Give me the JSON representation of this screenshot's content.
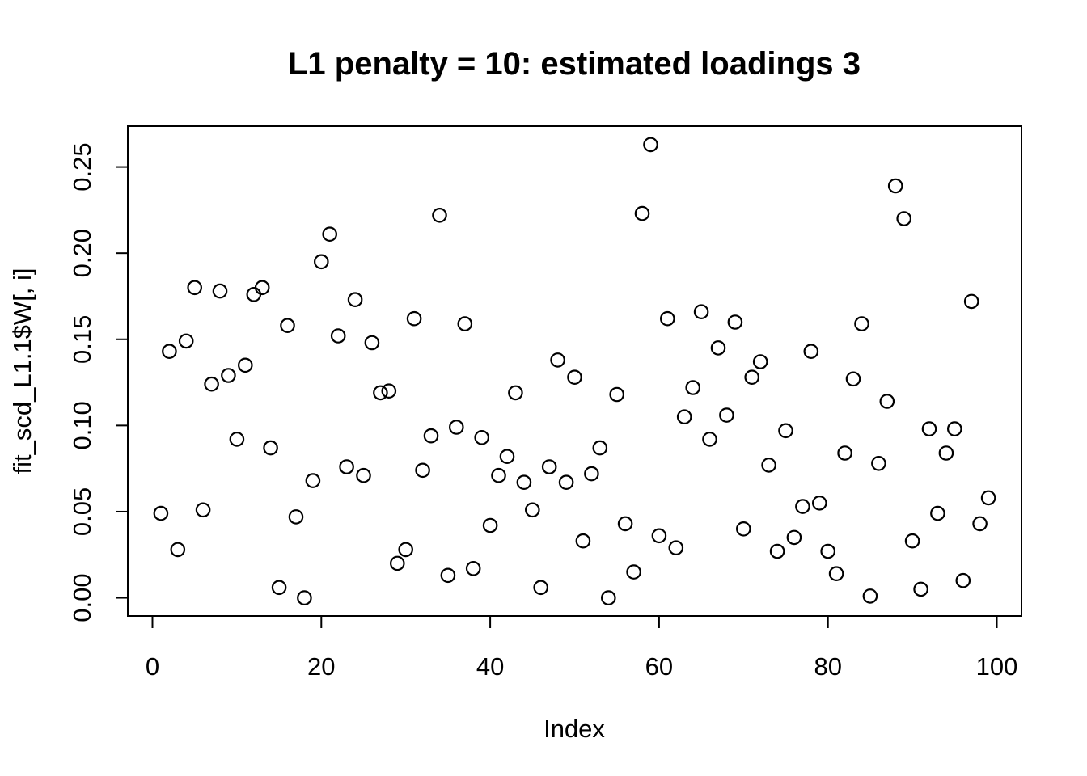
{
  "title": "L1 penalty = 10: estimated loadings 3",
  "x_axis": {
    "label": "Index",
    "ticks": [
      {
        "v": 0,
        "label": "0"
      },
      {
        "v": 20,
        "label": "20"
      },
      {
        "v": 40,
        "label": "40"
      },
      {
        "v": 60,
        "label": "60"
      },
      {
        "v": 80,
        "label": "80"
      },
      {
        "v": 100,
        "label": "100"
      }
    ]
  },
  "y_axis": {
    "label": "fit_scd_L1.1$W[, i]",
    "ticks": [
      {
        "v": 0.0,
        "label": "0.00"
      },
      {
        "v": 0.05,
        "label": "0.05"
      },
      {
        "v": 0.1,
        "label": "0.10"
      },
      {
        "v": 0.15,
        "label": "0.15"
      },
      {
        "v": 0.2,
        "label": "0.20"
      },
      {
        "v": 0.25,
        "label": "0.25"
      }
    ]
  },
  "chart_data": {
    "type": "scatter",
    "title": "L1 penalty = 10: estimated loadings 3",
    "xlabel": "Index",
    "ylabel": "fit_scd_L1.1$W[, i]",
    "point_style": "open-circle",
    "color": "#000000",
    "grid": false,
    "xlim": [
      -2.92,
      102.92
    ],
    "ylim": [
      -0.01053,
      0.27373
    ],
    "x": [
      1,
      2,
      3,
      4,
      5,
      6,
      7,
      8,
      9,
      10,
      11,
      12,
      13,
      14,
      15,
      16,
      17,
      18,
      19,
      20,
      21,
      22,
      23,
      24,
      25,
      26,
      27,
      28,
      29,
      30,
      31,
      32,
      33,
      34,
      35,
      36,
      37,
      38,
      39,
      40,
      41,
      42,
      43,
      44,
      45,
      46,
      47,
      48,
      49,
      50,
      51,
      52,
      53,
      54,
      55,
      56,
      57,
      58,
      59,
      60,
      61,
      62,
      63,
      64,
      65,
      66,
      67,
      68,
      69,
      70,
      71,
      72,
      73,
      74,
      75,
      76,
      77,
      78,
      79,
      80,
      81,
      82,
      83,
      84,
      85,
      86,
      87,
      88,
      89,
      90,
      91,
      92,
      93,
      94,
      95,
      96,
      97,
      98,
      99
    ],
    "y": [
      0.049,
      0.143,
      0.028,
      0.149,
      0.18,
      0.051,
      0.124,
      0.178,
      0.129,
      0.092,
      0.135,
      0.176,
      0.18,
      0.087,
      0.006,
      0.158,
      0.047,
      0.0,
      0.068,
      0.195,
      0.211,
      0.152,
      0.076,
      0.173,
      0.071,
      0.148,
      0.119,
      0.12,
      0.02,
      0.028,
      0.162,
      0.074,
      0.094,
      0.222,
      0.013,
      0.099,
      0.159,
      0.017,
      0.093,
      0.042,
      0.071,
      0.082,
      0.119,
      0.067,
      0.051,
      0.006,
      0.076,
      0.138,
      0.067,
      0.128,
      0.033,
      0.072,
      0.087,
      0.0,
      0.118,
      0.043,
      0.015,
      0.223,
      0.263,
      0.036,
      0.162,
      0.029,
      0.105,
      0.122,
      0.166,
      0.092,
      0.145,
      0.106,
      0.16,
      0.04,
      0.128,
      0.137,
      0.077,
      0.027,
      0.097,
      0.035,
      0.053,
      0.143,
      0.055,
      0.027,
      0.014,
      0.084,
      0.127,
      0.159,
      0.001,
      0.078,
      0.114,
      0.239,
      0.22,
      0.033,
      0.005,
      0.098,
      0.049,
      0.084,
      0.098,
      0.01,
      0.172,
      0.043,
      0.058
    ]
  }
}
